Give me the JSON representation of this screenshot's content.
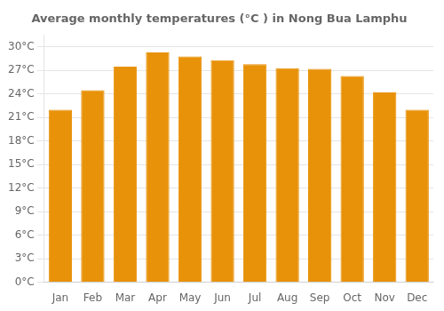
{
  "chart_data": {
    "type": "bar",
    "title": "Average monthly temperatures (°C ) in Nong Bua Lamphu",
    "categories": [
      "Jan",
      "Feb",
      "Mar",
      "Apr",
      "May",
      "Jun",
      "Jul",
      "Aug",
      "Sep",
      "Oct",
      "Nov",
      "Dec"
    ],
    "values": [
      22.0,
      24.5,
      27.5,
      29.3,
      28.8,
      28.3,
      27.8,
      27.3,
      27.2,
      26.3,
      24.2,
      22.0
    ],
    "color": "#E8920A",
    "ylim": [
      0,
      31.5
    ],
    "yticks": [
      {
        "value": 0,
        "label": "0°C"
      },
      {
        "value": 3,
        "label": "3°C"
      },
      {
        "value": 6,
        "label": "6°C"
      },
      {
        "value": 9,
        "label": "9°C"
      },
      {
        "value": 12,
        "label": "12°C"
      },
      {
        "value": 15,
        "label": "15°C"
      },
      {
        "value": 18,
        "label": "18°C"
      },
      {
        "value": 21,
        "label": "21°C"
      },
      {
        "value": 24,
        "label": "24°C"
      },
      {
        "value": 27,
        "label": "27°C"
      },
      {
        "value": 30,
        "label": "30°C"
      }
    ],
    "grid": true
  }
}
